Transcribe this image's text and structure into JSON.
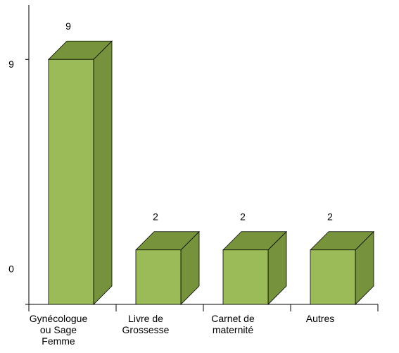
{
  "chart_data": {
    "type": "bar3d",
    "categories": [
      "Gynécologue ou Sage Femme",
      "Livre de Grossesse",
      "Carnet de maternité",
      "Autres"
    ],
    "values": [
      9,
      2,
      2,
      2
    ],
    "color": "#9bbb59",
    "ylim": [
      0,
      11
    ],
    "yticks": [
      0,
      9
    ]
  }
}
